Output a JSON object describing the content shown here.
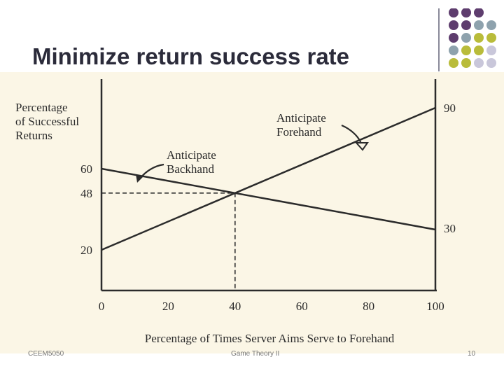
{
  "slide": {
    "title": "Minimize return success rate",
    "footer_left": "CEEM5050",
    "footer_center": "Game Theory II",
    "footer_right": "10"
  },
  "colors": {
    "purple": "#5e3d6e",
    "slate": "#8ea2ad",
    "olive": "#b9bc3a",
    "lavender": "#c9c7da",
    "paper": "#fbf6e6",
    "ink": "#2b2b2b"
  },
  "chart_data": {
    "type": "line",
    "ylabel": [
      "Percentage",
      "of Successful",
      "Returns"
    ],
    "xlabel": "Percentage of Times Server Aims Serve to Forehand",
    "xlim": [
      0,
      100
    ],
    "ylim": [
      0,
      100
    ],
    "x_ticks": [
      0,
      20,
      40,
      60,
      80,
      100
    ],
    "y_tick_labels": [
      {
        "value": 60,
        "label": "60"
      },
      {
        "value": 48,
        "label": "48"
      },
      {
        "value": 20,
        "label": "20"
      }
    ],
    "series": [
      {
        "name": "Anticipate Backhand",
        "x": [
          0,
          100
        ],
        "y": [
          60,
          30
        ],
        "end_label": "30"
      },
      {
        "name": "Anticipate Forehand",
        "x": [
          0,
          100
        ],
        "y": [
          20,
          90
        ],
        "end_label": "90"
      }
    ],
    "annotations": [
      {
        "text": [
          "Anticipate",
          "Backhand"
        ],
        "series": 0
      },
      {
        "text": [
          "Anticipate",
          "Forehand"
        ],
        "series": 1
      }
    ],
    "intersection": {
      "x": 40,
      "y": 48,
      "dashed_guides": true
    }
  }
}
